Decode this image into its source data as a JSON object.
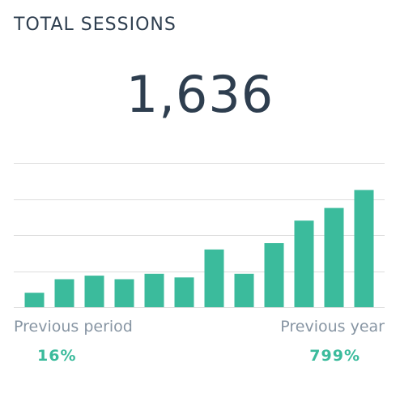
{
  "widget": {
    "title": "TOTAL SESSIONS",
    "value": "1,636"
  },
  "comparisons": {
    "previous_period_label": "Previous period",
    "previous_period_value": "16%",
    "previous_year_label": "Previous year",
    "previous_year_value": "799%"
  },
  "colors": {
    "bar": "#3bbb9c",
    "grid": "#dddddd",
    "text": "#2e3e4f"
  },
  "chart_data": {
    "type": "bar",
    "categories": [
      "",
      "",
      "",
      "",
      "",
      "",
      "",
      "",
      "",
      "",
      "",
      ""
    ],
    "values": [
      80,
      155,
      175,
      155,
      185,
      165,
      320,
      185,
      355,
      480,
      550,
      650
    ],
    "ylim": [
      0,
      800
    ],
    "grid": true,
    "xlabel": "",
    "ylabel": ""
  }
}
